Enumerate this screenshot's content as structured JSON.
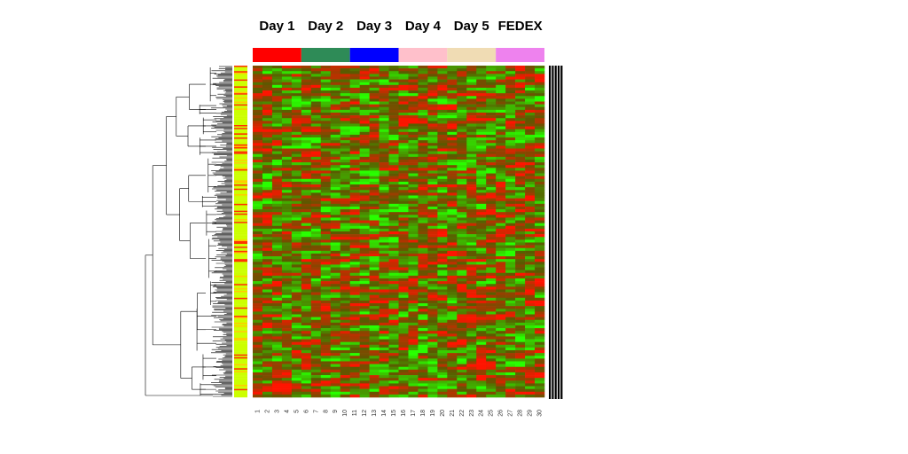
{
  "chart_data": {
    "type": "heatmap",
    "title": "",
    "xlabel": "",
    "ylabel": "",
    "column_groups": [
      {
        "name": "Day 1",
        "color": "#ff0000",
        "columns": [
          "1",
          "2",
          "3",
          "4",
          "5"
        ]
      },
      {
        "name": "Day 2",
        "color": "#2e8b57",
        "columns": [
          "6",
          "7",
          "8",
          "9",
          "10"
        ]
      },
      {
        "name": "Day 3",
        "color": "#0000ff",
        "columns": [
          "11",
          "12",
          "13",
          "14",
          "15"
        ]
      },
      {
        "name": "Day 4",
        "color": "#ffc0cb",
        "columns": [
          "16",
          "17",
          "18",
          "19",
          "20"
        ]
      },
      {
        "name": "Day 5",
        "color": "#f0dcb4",
        "columns": [
          "21",
          "22",
          "23",
          "24",
          "25"
        ]
      },
      {
        "name": "FEDEX",
        "color": "#ee82ee",
        "columns": [
          "26",
          "27",
          "28",
          "29",
          "30"
        ]
      }
    ],
    "x_tick_labels": [
      "1",
      "2",
      "3",
      "4",
      "5",
      "6",
      "7",
      "8",
      "9",
      "10",
      "11",
      "12",
      "13",
      "14",
      "15",
      "16",
      "17",
      "18",
      "19",
      "20",
      "21",
      "22",
      "23",
      "24",
      "25",
      "26",
      "27",
      "28",
      "29",
      "30"
    ],
    "color_scale": {
      "low": "#00ff00",
      "mid": "#000000",
      "high": "#ff0000"
    },
    "row_annotation_colors": [
      "#ccff00",
      "#ffcc00",
      "#ff3300"
    ],
    "row_dendrogram": true,
    "legend": "none",
    "grid": false
  }
}
